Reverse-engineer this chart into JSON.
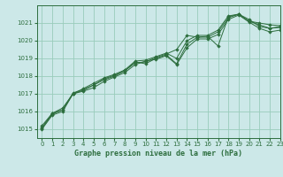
{
  "title": "Graphe pression niveau de la mer (hPa)",
  "bg_color": "#cce8e8",
  "grid_color": "#99ccbb",
  "line_color": "#2d6e3e",
  "marker_color": "#2d6e3e",
  "xlim": [
    -0.5,
    23
  ],
  "ylim": [
    1014.5,
    1022.0
  ],
  "xticks": [
    0,
    1,
    2,
    3,
    4,
    5,
    6,
    7,
    8,
    9,
    10,
    11,
    12,
    13,
    14,
    15,
    16,
    17,
    18,
    19,
    20,
    21,
    22,
    23
  ],
  "yticks": [
    1015,
    1016,
    1017,
    1018,
    1019,
    1020,
    1021
  ],
  "series": [
    [
      1015.1,
      1015.9,
      1016.1,
      1017.0,
      1017.2,
      1017.5,
      1017.8,
      1018.0,
      1018.3,
      1018.8,
      1018.7,
      1019.0,
      1019.2,
      1018.7,
      1019.8,
      1020.2,
      1020.2,
      1020.5,
      1021.3,
      1021.5,
      1021.2,
      1020.8,
      1020.7,
      1020.8
    ],
    [
      1015.2,
      1015.9,
      1016.2,
      1017.0,
      1017.3,
      1017.6,
      1017.9,
      1018.1,
      1018.35,
      1018.85,
      1018.9,
      1019.1,
      1019.3,
      1019.0,
      1020.0,
      1020.3,
      1020.3,
      1020.6,
      1021.4,
      1021.5,
      1021.1,
      1021.0,
      1020.9,
      1020.85
    ],
    [
      1015.0,
      1015.8,
      1016.0,
      1017.0,
      1017.15,
      1017.35,
      1017.7,
      1017.95,
      1018.2,
      1018.65,
      1018.85,
      1018.95,
      1019.15,
      1018.65,
      1019.6,
      1020.1,
      1020.1,
      1020.35,
      1021.2,
      1021.45,
      1021.05,
      1020.7,
      1020.5,
      1020.6
    ],
    [
      1015.05,
      1015.85,
      1016.1,
      1017.05,
      1017.25,
      1017.5,
      1017.85,
      1018.05,
      1018.3,
      1018.75,
      1018.8,
      1019.05,
      1019.25,
      1019.5,
      1020.3,
      1020.2,
      1020.25,
      1019.7,
      1021.35,
      1021.5,
      1021.1,
      1020.9,
      1020.7,
      1020.75
    ]
  ],
  "title_fontsize": 6.0,
  "tick_fontsize": 5.0,
  "fig_width": 3.2,
  "fig_height": 2.0,
  "dpi": 100
}
